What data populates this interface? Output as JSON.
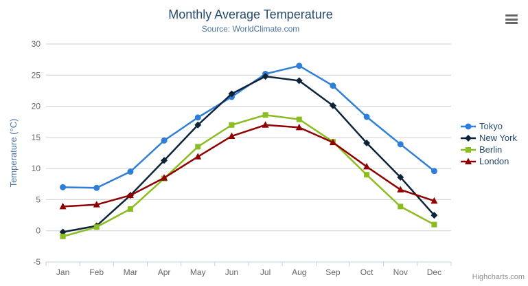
{
  "credits": {
    "label": "Highcharts.com"
  },
  "context_menu": {
    "icon": "hamburger-icon"
  },
  "colors": {
    "title": "#274b6d",
    "subtitle": "#4d759e",
    "axis_title": "#4d759e",
    "tick_label": "#666666",
    "grid": "#d0d0d0",
    "axis_line": "#c0d0e0",
    "legend_text": "#274b6d",
    "credits": "#909090"
  },
  "chart_data": {
    "type": "line",
    "title": "Monthly Average Temperature",
    "subtitle": "Source: WorldClimate.com",
    "xlabel": "",
    "ylabel": "Temperature (°C)",
    "ylim": [
      -5,
      30
    ],
    "yticks": [
      -5,
      0,
      5,
      10,
      15,
      20,
      25,
      30
    ],
    "grid": true,
    "legend_position": "right",
    "categories": [
      "Jan",
      "Feb",
      "Mar",
      "Apr",
      "May",
      "Jun",
      "Jul",
      "Aug",
      "Sep",
      "Oct",
      "Nov",
      "Dec"
    ],
    "series": [
      {
        "name": "Tokyo",
        "color": "#2f7ed8",
        "marker": "circle",
        "values": [
          7.0,
          6.9,
          9.5,
          14.5,
          18.2,
          21.5,
          25.2,
          26.5,
          23.3,
          18.3,
          13.9,
          9.6
        ]
      },
      {
        "name": "New York",
        "color": "#0d233a",
        "marker": "diamond",
        "values": [
          -0.2,
          0.8,
          5.7,
          11.3,
          17.0,
          22.0,
          24.8,
          24.1,
          20.1,
          14.1,
          8.6,
          2.5
        ]
      },
      {
        "name": "Berlin",
        "color": "#8bbc21",
        "marker": "square",
        "values": [
          -0.9,
          0.6,
          3.5,
          8.4,
          13.5,
          17.0,
          18.6,
          17.9,
          14.3,
          9.0,
          3.9,
          1.0
        ]
      },
      {
        "name": "London",
        "color": "#910000",
        "marker": "triangle",
        "values": [
          3.9,
          4.2,
          5.7,
          8.5,
          11.9,
          15.2,
          17.0,
          16.6,
          14.2,
          10.3,
          6.6,
          4.8
        ]
      }
    ]
  }
}
